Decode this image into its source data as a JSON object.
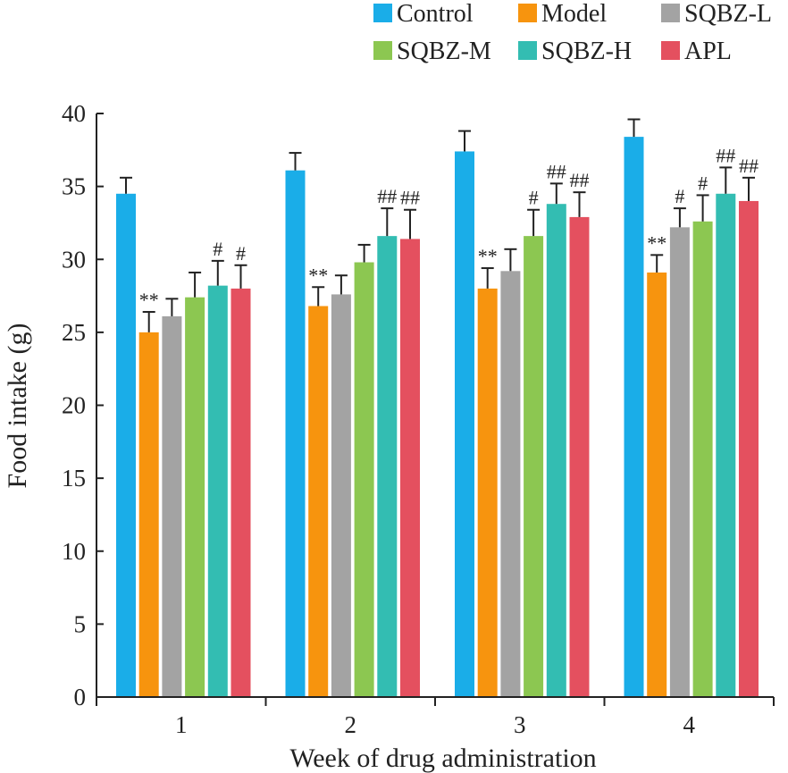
{
  "chart_data": {
    "type": "bar",
    "title": "",
    "xlabel": "Week of drug administration",
    "ylabel": "Food intake (g)",
    "ylim": [
      0,
      40
    ],
    "yticks": [
      0,
      5,
      10,
      15,
      20,
      25,
      30,
      35,
      40
    ],
    "categories": [
      "1",
      "2",
      "3",
      "4"
    ],
    "legend_position": "top-right",
    "grid": false,
    "error_bars": "upward SD bars",
    "series": [
      {
        "name": "Control",
        "color": "#1AADE8",
        "values": [
          34.5,
          36.1,
          37.4,
          38.4
        ],
        "errors": [
          1.1,
          1.2,
          1.4,
          1.2
        ],
        "annotations": [
          "",
          "",
          "",
          ""
        ]
      },
      {
        "name": "Model",
        "color": "#F7940E",
        "values": [
          25.0,
          26.8,
          28.0,
          29.1
        ],
        "errors": [
          1.4,
          1.3,
          1.4,
          1.2
        ],
        "annotations": [
          "**",
          "**",
          "**",
          "**"
        ]
      },
      {
        "name": "SQBZ-L",
        "color": "#A3A3A3",
        "values": [
          26.1,
          27.6,
          29.2,
          32.2
        ],
        "errors": [
          1.2,
          1.3,
          1.5,
          1.3
        ],
        "annotations": [
          "",
          "",
          "",
          "#"
        ]
      },
      {
        "name": "SQBZ-M",
        "color": "#8CC751",
        "values": [
          27.4,
          29.8,
          31.6,
          32.6
        ],
        "errors": [
          1.7,
          1.2,
          1.8,
          1.8
        ],
        "annotations": [
          "",
          "",
          "#",
          "#"
        ]
      },
      {
        "name": "SQBZ-H",
        "color": "#33BDB2",
        "values": [
          28.2,
          31.6,
          33.8,
          34.5
        ],
        "errors": [
          1.7,
          1.9,
          1.4,
          1.8
        ],
        "annotations": [
          "#",
          "##",
          "##",
          "##"
        ]
      },
      {
        "name": "APL",
        "color": "#E4505F",
        "values": [
          28.0,
          31.4,
          32.9,
          34.0
        ],
        "errors": [
          1.6,
          2.0,
          1.7,
          1.6
        ],
        "annotations": [
          "#",
          "##",
          "##",
          "##"
        ]
      }
    ]
  }
}
